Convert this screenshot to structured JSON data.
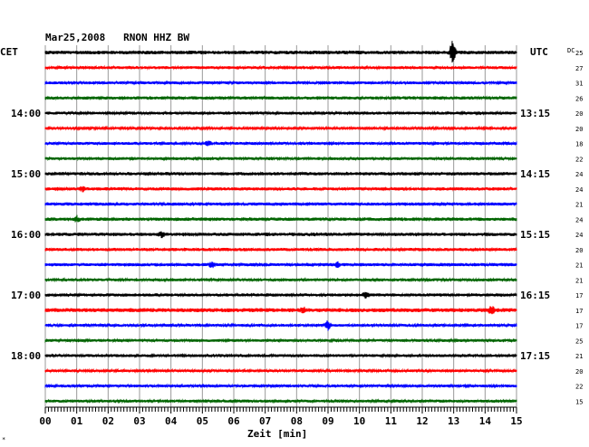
{
  "chart_data": {
    "type": "line",
    "title": "Mar25,2008   RNON HHZ BW",
    "xlabel": "Zeit [min]",
    "left_axis_label": "CET",
    "right_axis_label": "UTC",
    "dc_label": "DC",
    "x_ticks": [
      "00",
      "01",
      "02",
      "03",
      "04",
      "05",
      "06",
      "07",
      "08",
      "09",
      "10",
      "11",
      "12",
      "13",
      "14",
      "15"
    ],
    "xlim": [
      0,
      15
    ],
    "grid": true,
    "left_hour_labels": [
      {
        "trace": 4,
        "text": "14:00"
      },
      {
        "trace": 8,
        "text": "15:00"
      },
      {
        "trace": 12,
        "text": "16:00"
      },
      {
        "trace": 16,
        "text": "17:00"
      },
      {
        "trace": 20,
        "text": "18:00"
      }
    ],
    "right_hour_labels": [
      {
        "trace": 4,
        "text": "13:15"
      },
      {
        "trace": 8,
        "text": "14:15"
      },
      {
        "trace": 12,
        "text": "15:15"
      },
      {
        "trace": 16,
        "text": "16:15"
      },
      {
        "trace": 20,
        "text": "17:15"
      }
    ],
    "dc_values": [
      "25",
      "27",
      "31",
      "26",
      "20",
      "20",
      "18",
      "22",
      "24",
      "24",
      "21",
      "24",
      "24",
      "20",
      "21",
      "21",
      "17",
      "17",
      "17",
      "25",
      "21",
      "20",
      "22",
      "15"
    ],
    "series": [
      {
        "color": "#000000",
        "amplitude": 2.0,
        "events": [
          {
            "x": 12.95,
            "amp": 11
          },
          {
            "x": 13.0,
            "amp": 7
          }
        ]
      },
      {
        "color": "#ff0000",
        "amplitude": 1.6,
        "events": []
      },
      {
        "color": "#0000ff",
        "amplitude": 1.6,
        "events": []
      },
      {
        "color": "#006400",
        "amplitude": 1.8,
        "events": []
      },
      {
        "color": "#000000",
        "amplitude": 1.6,
        "events": []
      },
      {
        "color": "#ff0000",
        "amplitude": 1.3,
        "events": []
      },
      {
        "color": "#0000ff",
        "amplitude": 1.6,
        "events": [
          {
            "x": 5.2,
            "amp": 3
          }
        ]
      },
      {
        "color": "#006400",
        "amplitude": 1.6,
        "events": []
      },
      {
        "color": "#000000",
        "amplitude": 1.8,
        "events": []
      },
      {
        "color": "#ff0000",
        "amplitude": 1.8,
        "events": [
          {
            "x": 1.2,
            "amp": 3
          }
        ]
      },
      {
        "color": "#0000ff",
        "amplitude": 1.8,
        "events": []
      },
      {
        "color": "#006400",
        "amplitude": 1.9,
        "events": [
          {
            "x": 1.0,
            "amp": 3
          }
        ]
      },
      {
        "color": "#000000",
        "amplitude": 1.8,
        "events": [
          {
            "x": 3.7,
            "amp": 3
          }
        ]
      },
      {
        "color": "#ff0000",
        "amplitude": 1.8,
        "events": []
      },
      {
        "color": "#0000ff",
        "amplitude": 1.8,
        "events": [
          {
            "x": 5.3,
            "amp": 3
          },
          {
            "x": 9.3,
            "amp": 3
          }
        ]
      },
      {
        "color": "#006400",
        "amplitude": 1.6,
        "events": []
      },
      {
        "color": "#000000",
        "amplitude": 1.7,
        "events": [
          {
            "x": 10.2,
            "amp": 4
          }
        ]
      },
      {
        "color": "#ff0000",
        "amplitude": 2.2,
        "events": [
          {
            "x": 8.2,
            "amp": 3
          },
          {
            "x": 14.2,
            "amp": 4
          }
        ]
      },
      {
        "color": "#0000ff",
        "amplitude": 1.5,
        "events": [
          {
            "x": 9.0,
            "amp": 5
          }
        ]
      },
      {
        "color": "#006400",
        "amplitude": 1.6,
        "events": []
      },
      {
        "color": "#000000",
        "amplitude": 1.6,
        "events": []
      },
      {
        "color": "#ff0000",
        "amplitude": 1.4,
        "events": []
      },
      {
        "color": "#0000ff",
        "amplitude": 1.5,
        "events": []
      },
      {
        "color": "#006400",
        "amplitude": 1.6,
        "events": []
      }
    ]
  }
}
